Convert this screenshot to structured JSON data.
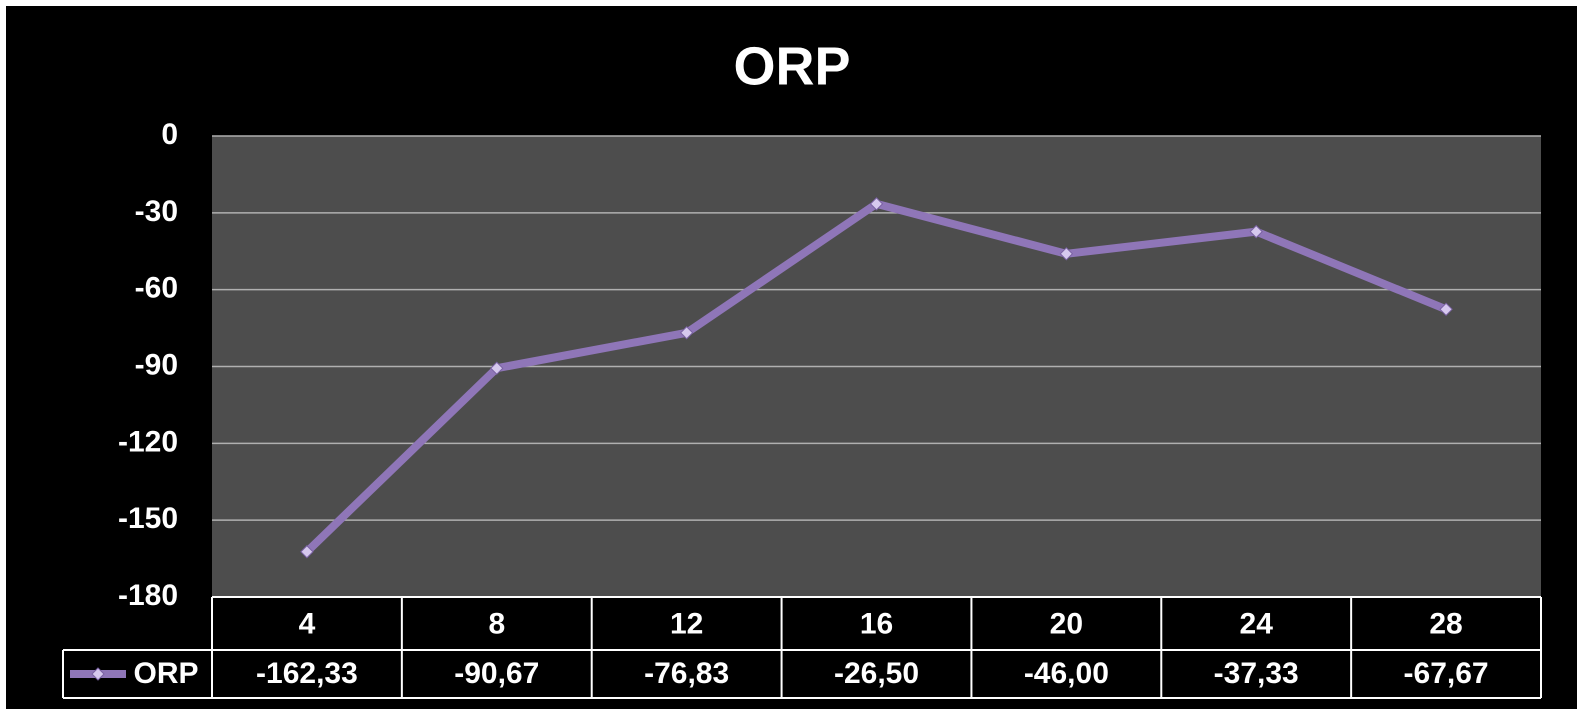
{
  "chart_data": {
    "type": "line",
    "title": "ORP",
    "categories": [
      "4",
      "8",
      "12",
      "16",
      "20",
      "24",
      "28"
    ],
    "series": [
      {
        "name": "ORP",
        "color": "#8f76b8",
        "values": [
          -162.33,
          -90.67,
          -76.83,
          -26.5,
          -46.0,
          -37.33,
          -67.67
        ],
        "value_labels": [
          "-162,33",
          "-90,67",
          "-76,83",
          "-26,50",
          "-46,00",
          "-37,33",
          "-67,67"
        ]
      }
    ],
    "ylim": [
      -180,
      0
    ],
    "yticks": [
      0,
      -30,
      -60,
      -90,
      -120,
      -150,
      -180
    ],
    "grid": true
  }
}
